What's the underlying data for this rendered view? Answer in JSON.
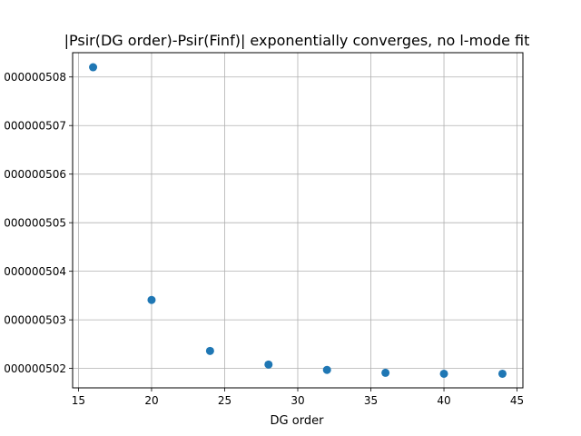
{
  "chart_data": {
    "type": "scatter",
    "title": "|Psir(DG order)-Psir(Finf)| exponentially converges, no l-mode fit",
    "xlabel": "DG order",
    "ylabel": "",
    "xlim": [
      14.6,
      45.4
    ],
    "ylim": [
      5.016e-07,
      5.085e-07
    ],
    "x_ticks": [
      15,
      20,
      25,
      30,
      35,
      40,
      45
    ],
    "x_tick_labels": [
      "15",
      "20",
      "25",
      "30",
      "35",
      "40",
      "45"
    ],
    "y_ticks": [
      5.02e-07,
      5.03e-07,
      5.04e-07,
      5.05e-07,
      5.06e-07,
      5.07e-07,
      5.08e-07
    ],
    "y_tick_labels": [
      "000000502",
      "000000503",
      "000000504",
      "000000505",
      "000000506",
      "000000507",
      "000000508"
    ],
    "grid": true,
    "marker_color": "#1f77b4",
    "series": [
      {
        "x": [
          16,
          20,
          24,
          28,
          32,
          36,
          40,
          44
        ],
        "y": [
          5.082e-07,
          5.0341e-07,
          5.0236e-07,
          5.0208e-07,
          5.0197e-07,
          5.0191e-07,
          5.0189e-07,
          5.0189e-07
        ]
      }
    ]
  }
}
